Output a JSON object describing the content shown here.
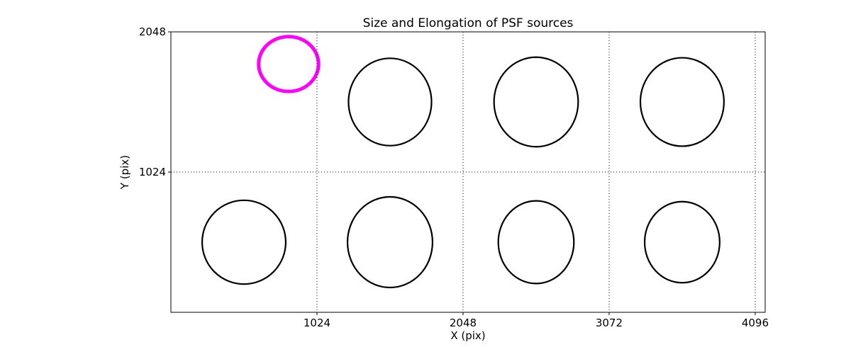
{
  "figure": {
    "background": "#ffffff",
    "axis_color": "#000000",
    "highlight_color": "#ff00ff"
  },
  "chart_data": {
    "type": "scatter",
    "marker": "ellipse",
    "title": "Size and Elongation of PSF sources",
    "xlabel": "X (pix)",
    "ylabel": "Y (pix)",
    "xlim": [
      0,
      4166
    ],
    "ylim": [
      0,
      2048
    ],
    "xticks": [
      1024,
      2048,
      3072,
      4096
    ],
    "xticklabels": [
      "1024",
      "2048",
      "3072",
      "4096"
    ],
    "yticks": [
      1024,
      2048
    ],
    "yticklabels": [
      "1024",
      "2048"
    ],
    "grid": true,
    "grid_style": "dotted",
    "legend": "none",
    "sources": [
      {
        "x": 825,
        "y": 1813,
        "rx": 210,
        "ry": 200,
        "color": "#ff00ff",
        "lw": 5,
        "highlight": true
      },
      {
        "x": 1536,
        "y": 1536,
        "rx": 291,
        "ry": 319,
        "color": "#000000",
        "lw": 2.2,
        "highlight": false
      },
      {
        "x": 2560,
        "y": 1536,
        "rx": 295,
        "ry": 327,
        "color": "#000000",
        "lw": 2.2,
        "highlight": false
      },
      {
        "x": 3584,
        "y": 1536,
        "rx": 293,
        "ry": 323,
        "color": "#000000",
        "lw": 2.2,
        "highlight": false
      },
      {
        "x": 512,
        "y": 512,
        "rx": 293,
        "ry": 306,
        "color": "#000000",
        "lw": 2.2,
        "highlight": false
      },
      {
        "x": 1536,
        "y": 512,
        "rx": 298,
        "ry": 331,
        "color": "#000000",
        "lw": 2.2,
        "highlight": false
      },
      {
        "x": 2560,
        "y": 512,
        "rx": 265,
        "ry": 302,
        "color": "#000000",
        "lw": 2.2,
        "highlight": false
      },
      {
        "x": 3584,
        "y": 512,
        "rx": 263,
        "ry": 296,
        "color": "#000000",
        "lw": 2.2,
        "highlight": false
      }
    ]
  }
}
